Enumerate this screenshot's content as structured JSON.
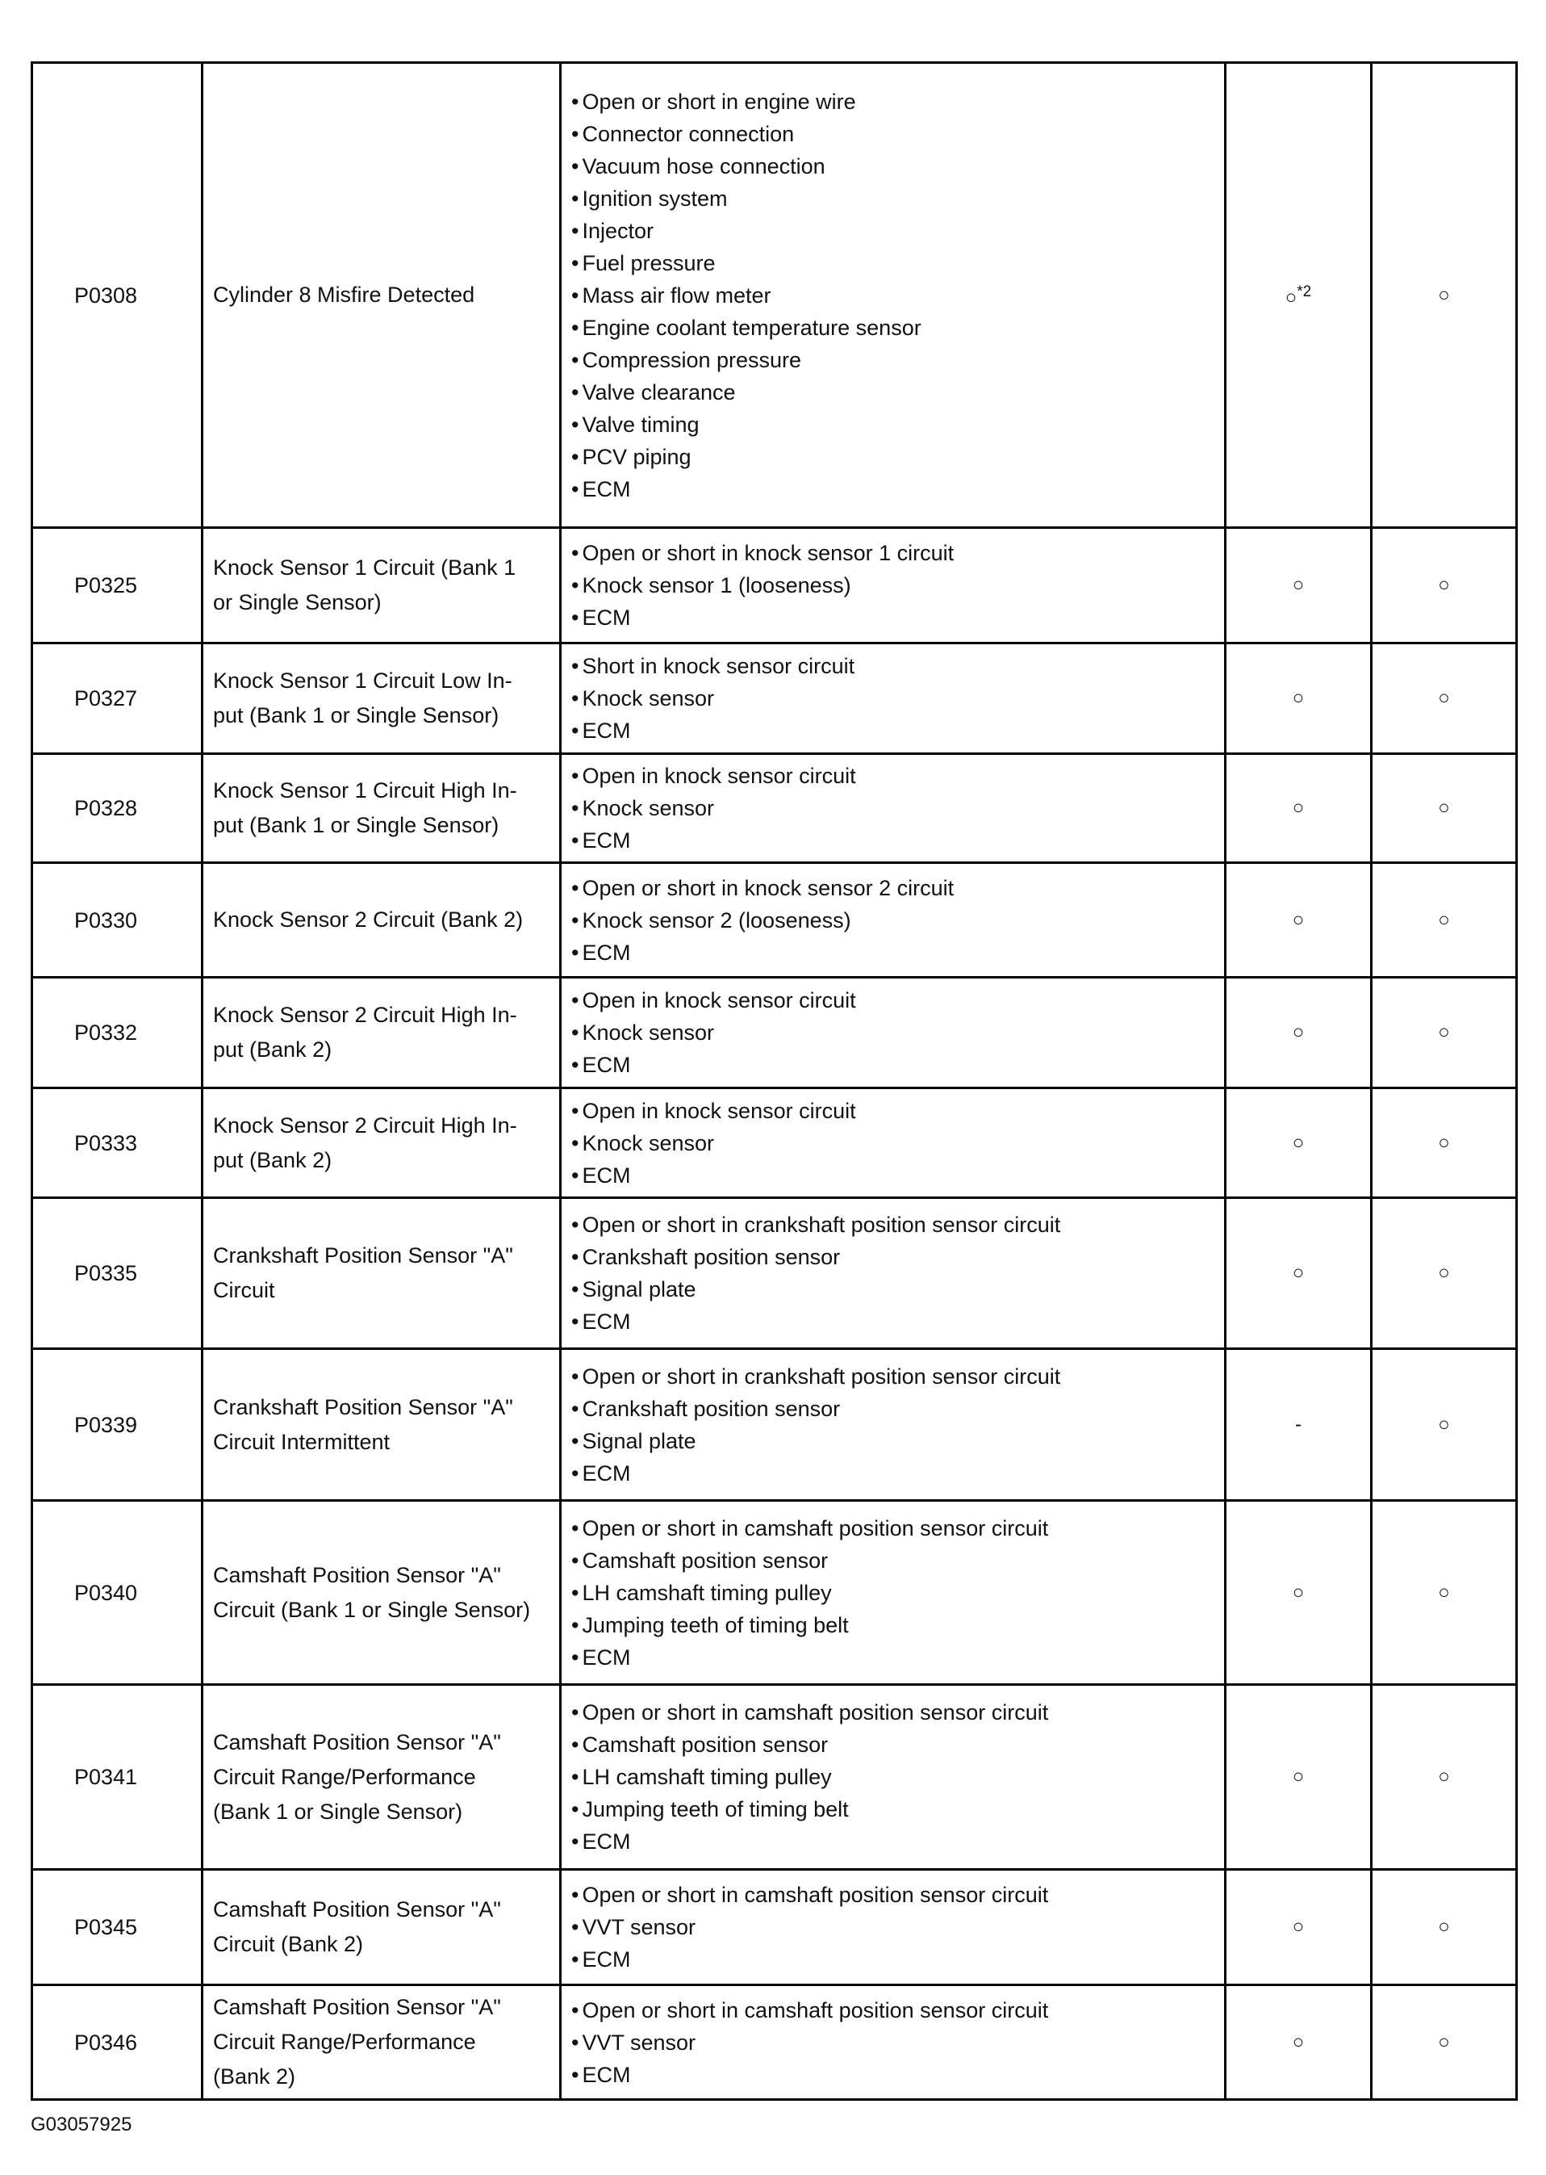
{
  "table": {
    "rows": [
      {
        "code": "P0308",
        "description": [
          "Cylinder 8 Misfire Detected"
        ],
        "causes": [
          "Open or short in engine wire",
          "Connector connection",
          "Vacuum hose connection",
          "Ignition system",
          "Injector",
          "Fuel pressure",
          "Mass air flow meter",
          "Engine coolant temperature sensor",
          "Compression pressure",
          "Valve clearance",
          "Valve timing",
          "PCV piping",
          "ECM"
        ],
        "mil": "○",
        "mil_note": "*2",
        "memory": "○"
      },
      {
        "code": "P0325",
        "description": [
          "Knock Sensor 1 Circuit (Bank 1",
          "or Single Sensor)"
        ],
        "causes": [
          "Open or short in knock sensor 1 circuit",
          "Knock sensor 1 (looseness)",
          "ECM"
        ],
        "mil": "○",
        "memory": "○"
      },
      {
        "code": "P0327",
        "description": [
          "Knock Sensor 1 Circuit Low In-",
          "put (Bank 1 or Single Sensor)"
        ],
        "causes": [
          "Short in knock sensor circuit",
          "Knock sensor",
          "ECM"
        ],
        "mil": "○",
        "memory": "○"
      },
      {
        "code": "P0328",
        "description": [
          "Knock Sensor 1 Circuit High In-",
          "put (Bank 1 or Single Sensor)"
        ],
        "causes": [
          "Open in knock sensor circuit",
          "Knock sensor",
          "ECM"
        ],
        "mil": "○",
        "memory": "○"
      },
      {
        "code": "P0330",
        "description": [
          "Knock Sensor 2 Circuit (Bank 2)"
        ],
        "causes": [
          "Open or short in knock sensor 2 circuit",
          "Knock sensor 2 (looseness)",
          "ECM"
        ],
        "mil": "○",
        "memory": "○"
      },
      {
        "code": "P0332",
        "description": [
          "Knock Sensor 2 Circuit High In-",
          "put (Bank 2)"
        ],
        "causes": [
          "Open in knock sensor circuit",
          "Knock sensor",
          "ECM"
        ],
        "mil": "○",
        "memory": "○"
      },
      {
        "code": "P0333",
        "description": [
          "Knock Sensor 2 Circuit High In-",
          "put (Bank 2)"
        ],
        "causes": [
          "Open in knock sensor circuit",
          "Knock sensor",
          "ECM"
        ],
        "mil": "○",
        "memory": "○"
      },
      {
        "code": "P0335",
        "description": [
          "Crankshaft Position Sensor \"A\"",
          "Circuit"
        ],
        "causes": [
          "Open or short in crankshaft position sensor circuit",
          "Crankshaft position sensor",
          "Signal plate",
          "ECM"
        ],
        "mil": "○",
        "memory": "○"
      },
      {
        "code": "P0339",
        "description": [
          "Crankshaft Position Sensor \"A\"",
          "Circuit Intermittent"
        ],
        "causes": [
          "Open or short in crankshaft position sensor circuit",
          "Crankshaft position sensor",
          "Signal plate",
          "ECM"
        ],
        "mil": "-",
        "memory": "○"
      },
      {
        "code": "P0340",
        "description": [
          "Camshaft Position Sensor \"A\"",
          "Circuit (Bank 1 or Single Sensor)"
        ],
        "causes": [
          "Open or short in camshaft position sensor circuit",
          "Camshaft position sensor",
          "LH camshaft timing pulley",
          "Jumping teeth of timing belt",
          "ECM"
        ],
        "mil": "○",
        "memory": "○"
      },
      {
        "code": "P0341",
        "description": [
          "Camshaft Position Sensor \"A\"",
          "Circuit Range/Performance",
          "(Bank 1 or Single Sensor)"
        ],
        "causes": [
          "Open or short in camshaft position sensor circuit",
          "Camshaft position sensor",
          "LH camshaft timing pulley",
          "Jumping teeth of timing belt",
          "ECM"
        ],
        "mil": "○",
        "memory": "○"
      },
      {
        "code": "P0345",
        "description": [
          "Camshaft Position Sensor \"A\"",
          "Circuit (Bank 2)"
        ],
        "causes": [
          "Open or short in camshaft position sensor circuit",
          "VVT sensor",
          "ECM"
        ],
        "mil": "○",
        "memory": "○"
      },
      {
        "code": "P0346",
        "description": [
          "Camshaft Position Sensor \"A\"",
          "Circuit Range/Performance",
          "(Bank 2)"
        ],
        "causes": [
          "Open or short in camshaft position sensor circuit",
          "VVT sensor",
          "ECM"
        ],
        "mil": "○",
        "memory": "○"
      }
    ]
  },
  "footer": {
    "figure_id": "G03057925"
  }
}
